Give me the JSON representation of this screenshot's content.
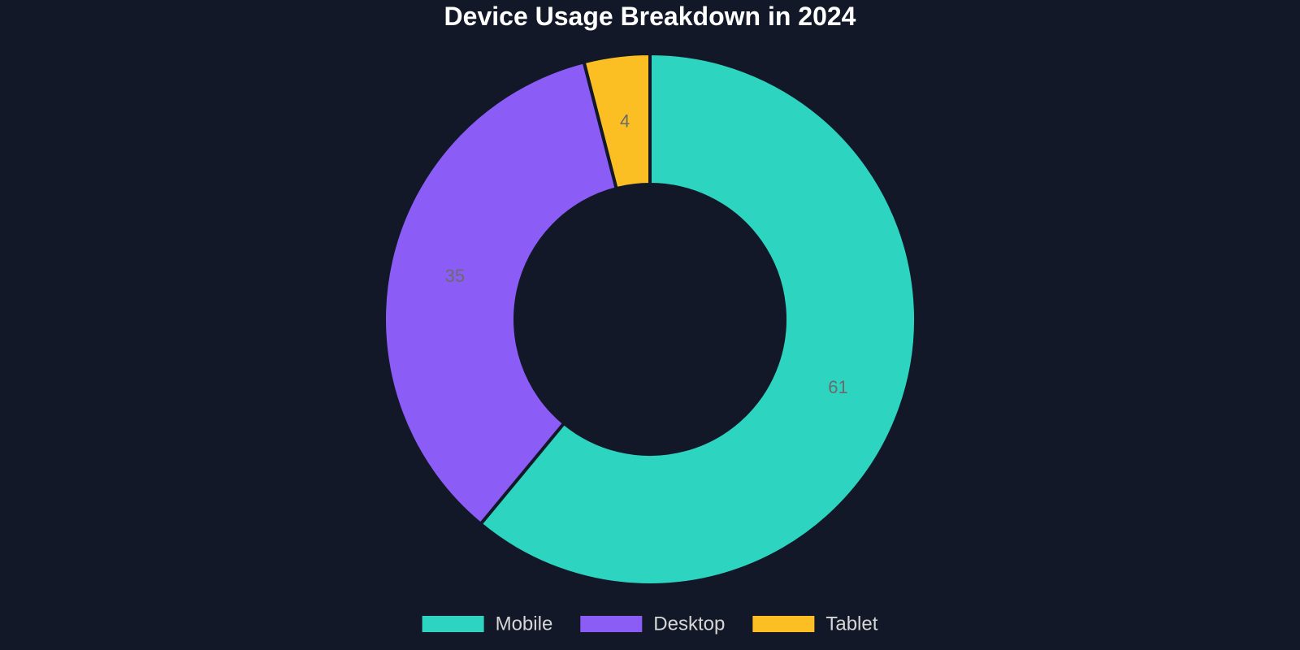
{
  "chart_data": {
    "type": "pie",
    "title": "Device Usage Breakdown in 2024",
    "hole": true,
    "categories": [
      "Mobile",
      "Desktop",
      "Tablet"
    ],
    "values": [
      61,
      35,
      4
    ],
    "colors": [
      "#2dd4bf",
      "#8b5cf6",
      "#fbbf24"
    ],
    "data_labels": [
      "61",
      "35",
      "4"
    ],
    "legend_position": "bottom-center",
    "background": "#121827",
    "separator_color": "#121827"
  }
}
